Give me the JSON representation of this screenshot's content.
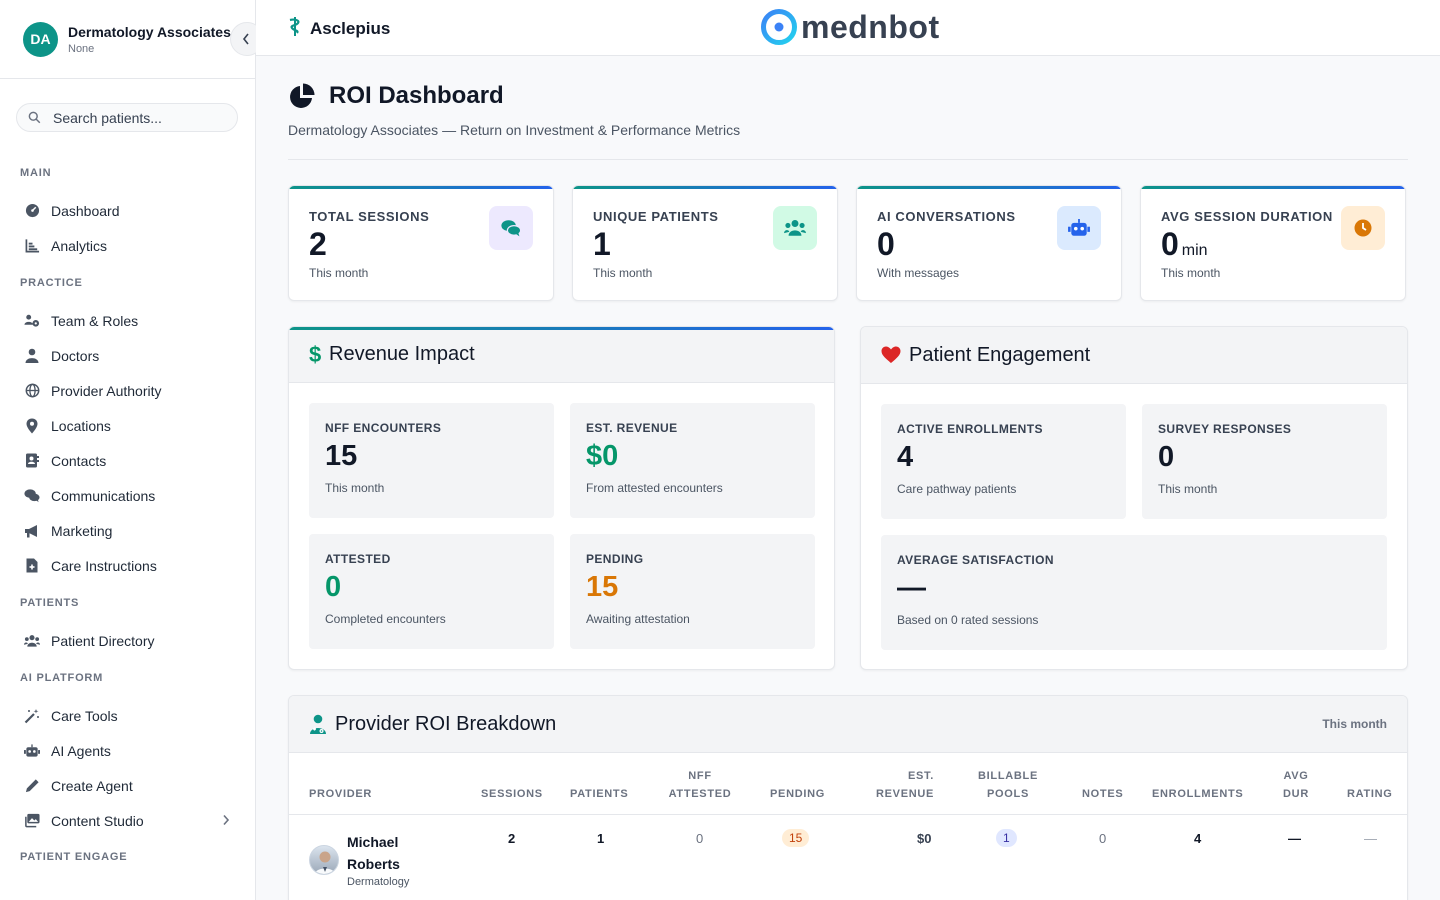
{
  "sidebar": {
    "org": {
      "initials": "DA",
      "name": "Dermatology Associates",
      "subtitle": "None"
    },
    "search_placeholder": "Search patients...",
    "sections": {
      "main": "MAIN",
      "practice": "PRACTICE",
      "patients": "PATIENTS",
      "ai_platform": "AI PLATFORM",
      "patient_engage": "PATIENT ENGAGE"
    },
    "items": {
      "dashboard": "Dashboard",
      "analytics": "Analytics",
      "team_roles": "Team & Roles",
      "doctors": "Doctors",
      "provider_authority": "Provider Authority",
      "locations": "Locations",
      "contacts": "Contacts",
      "communications": "Communications",
      "marketing": "Marketing",
      "care_instructions": "Care Instructions",
      "patient_directory": "Patient Directory",
      "care_tools": "Care Tools",
      "ai_agents": "AI Agents",
      "create_agent": "Create Agent",
      "content_studio": "Content Studio"
    }
  },
  "topbar": {
    "brand": "Asclepius",
    "logo_text": "mednbot"
  },
  "page": {
    "title": "ROI Dashboard",
    "subtitle": "Dermatology Associates — Return on Investment & Performance Metrics"
  },
  "stats": [
    {
      "label": "TOTAL SESSIONS",
      "value": "2",
      "note": "This month"
    },
    {
      "label": "UNIQUE PATIENTS",
      "value": "1",
      "note": "This month"
    },
    {
      "label": "AI CONVERSATIONS",
      "value": "0",
      "note": "With messages"
    },
    {
      "label": "AVG SESSION DURATION",
      "value": "0",
      "unit": "min",
      "note": "This month"
    }
  ],
  "revenue": {
    "title": "Revenue Impact",
    "metrics": [
      {
        "label": "NFF ENCOUNTERS",
        "value": "15",
        "note": "This month"
      },
      {
        "label": "EST. REVENUE",
        "value": "$0",
        "note": "From attested encounters"
      },
      {
        "label": "ATTESTED",
        "value": "0",
        "note": "Completed encounters"
      },
      {
        "label": "PENDING",
        "value": "15",
        "note": "Awaiting attestation"
      }
    ]
  },
  "engagement": {
    "title": "Patient Engagement",
    "metrics": [
      {
        "label": "ACTIVE ENROLLMENTS",
        "value": "4",
        "note": "Care pathway patients"
      },
      {
        "label": "SURVEY RESPONSES",
        "value": "0",
        "note": "This month"
      },
      {
        "label": "AVERAGE SATISFACTION",
        "value": "—",
        "note": "Based on 0 rated sessions"
      }
    ]
  },
  "provider_table": {
    "title": "Provider ROI Breakdown",
    "range": "This month",
    "columns": {
      "provider": "PROVIDER",
      "sessions": "SESSIONS",
      "patients": "PATIENTS",
      "nff_attested_1": "NFF",
      "nff_attested_2": "ATTESTED",
      "pending": "PENDING",
      "est_revenue_1": "EST.",
      "est_revenue_2": "REVENUE",
      "billable_pools_1": "BILLABLE",
      "billable_pools_2": "POOLS",
      "notes": "NOTES",
      "enrollments": "ENROLLMENTS",
      "avg_dur_1": "AVG",
      "avg_dur_2": "DUR",
      "rating": "RATING"
    },
    "rows": [
      {
        "name": "Michael Roberts",
        "specialty": "Dermatology",
        "sessions": "2",
        "patients": "1",
        "nff_attested": "0",
        "pending": "15",
        "est_revenue": "$0",
        "billable_pools": "1",
        "notes": "0",
        "enrollments": "4",
        "avg_dur": "—",
        "rating": "—"
      }
    ]
  },
  "colors": {
    "accent": "#0d9488",
    "brand_blue": "#2563eb",
    "positive": "#059669",
    "warning": "#d97706",
    "heart": "#dc2626"
  }
}
